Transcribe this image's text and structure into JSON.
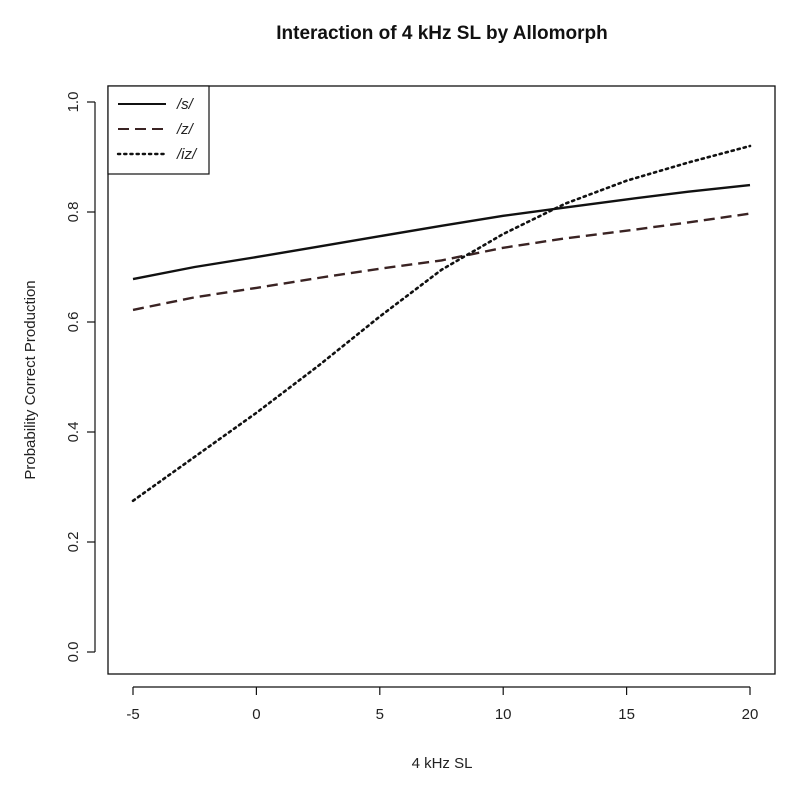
{
  "chart_data": {
    "type": "line",
    "title": "Interaction of 4 kHz SL by Allomorph",
    "xlabel": "4 kHz SL",
    "ylabel": "Probability Correct Production",
    "xlim": [
      -5,
      20
    ],
    "ylim": [
      0,
      1
    ],
    "xticks": [
      -5,
      0,
      5,
      10,
      15,
      20
    ],
    "yticks": [
      0.0,
      0.2,
      0.4,
      0.6,
      0.8,
      1.0
    ],
    "ytick_labels": [
      "0.0",
      "0.2",
      "0.4",
      "0.6",
      "0.8",
      "1.0"
    ],
    "xtick_labels": [
      "-5",
      "0",
      "5",
      "10",
      "15",
      "20"
    ],
    "legend_position": "top-left",
    "grid": false,
    "x": [
      -5,
      -2.5,
      0,
      2.5,
      5,
      7.5,
      10,
      12.5,
      15,
      17.5,
      20
    ],
    "series": [
      {
        "name": "/s/",
        "style": "solid",
        "color": "#111111",
        "values": [
          0.678,
          0.7,
          0.718,
          0.737,
          0.756,
          0.775,
          0.793,
          0.808,
          0.823,
          0.837,
          0.849
        ]
      },
      {
        "name": "/z/",
        "style": "dashed",
        "color": "#3a2323",
        "values": [
          0.622,
          0.645,
          0.662,
          0.68,
          0.697,
          0.712,
          0.735,
          0.752,
          0.766,
          0.781,
          0.797
        ]
      },
      {
        "name": "/iz/",
        "style": "dotted",
        "color": "#111111",
        "values": [
          0.275,
          0.355,
          0.435,
          0.52,
          0.61,
          0.695,
          0.76,
          0.815,
          0.857,
          0.89,
          0.92
        ]
      }
    ]
  }
}
